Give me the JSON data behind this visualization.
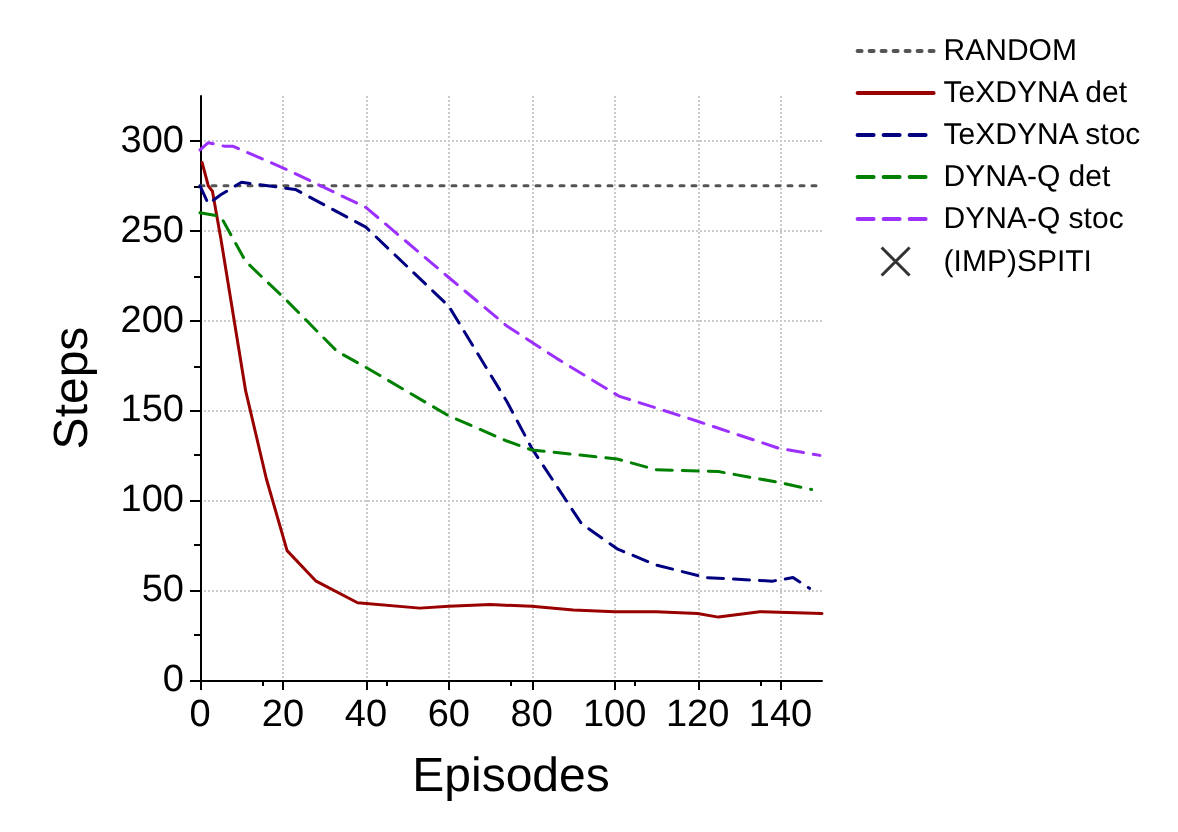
{
  "chart_data": {
    "type": "line",
    "xlabel": "Episodes",
    "ylabel": "Steps",
    "xlim": [
      0,
      150
    ],
    "ylim": [
      0,
      325
    ],
    "xticks": [
      0,
      20,
      40,
      60,
      80,
      100,
      120,
      140
    ],
    "yticks": [
      0,
      50,
      100,
      150,
      200,
      250,
      300
    ],
    "grid": true,
    "legend": "top right",
    "marker": "none",
    "series": [
      {
        "name": "RANDOM",
        "color": "#555555",
        "line_style": "dotted",
        "x": [
          0,
          150
        ],
        "values": [
          275,
          275
        ]
      },
      {
        "name": "TeXDYNA det",
        "color": "#990000",
        "line_style": "solid",
        "x": [
          0.5,
          2,
          3,
          5,
          11,
          16,
          21,
          28,
          38,
          53,
          60,
          70,
          80,
          90,
          100,
          110,
          120,
          125,
          135,
          150
        ],
        "values": [
          288,
          275,
          272,
          246,
          161,
          112,
          72,
          55,
          43,
          40,
          41,
          42,
          41,
          39,
          38,
          38,
          37,
          35,
          38,
          37
        ]
      },
      {
        "name": "TeXDYNA stoc",
        "color": "#000080",
        "line_style": "dashed",
        "x": [
          0,
          2,
          5,
          10,
          23,
          40,
          60,
          74,
          80,
          92,
          100.6,
          110,
          122,
          138,
          143,
          147
        ],
        "values": [
          275,
          265,
          270,
          277,
          273,
          252,
          208,
          155,
          129,
          87,
          73,
          64,
          57,
          55,
          57,
          51
        ]
      },
      {
        "name": "DYNA-Q det",
        "color": "#008000",
        "line_style": "dashed",
        "x": [
          0,
          5,
          11,
          21,
          33,
          40,
          60,
          74,
          80,
          100.6,
          110,
          125,
          139.5,
          147.5
        ],
        "values": [
          260,
          258,
          233,
          211,
          183,
          174,
          147,
          133,
          128,
          123,
          117,
          116,
          110,
          106
        ]
      },
      {
        "name": "DYNA-Q stoc",
        "color": "#9b30ff",
        "line_style": "dashed",
        "x": [
          0,
          2,
          6,
          8,
          21,
          40,
          60,
          74,
          86,
          101,
          120,
          139.5,
          149.5
        ],
        "values": [
          295,
          299,
          297,
          297,
          284,
          263,
          224,
          197,
          179,
          158,
          144,
          129,
          125
        ]
      },
      {
        "name": "(IMP)SPITI",
        "type": "scatter",
        "color": "#000000",
        "marker": "cross"
      }
    ]
  }
}
